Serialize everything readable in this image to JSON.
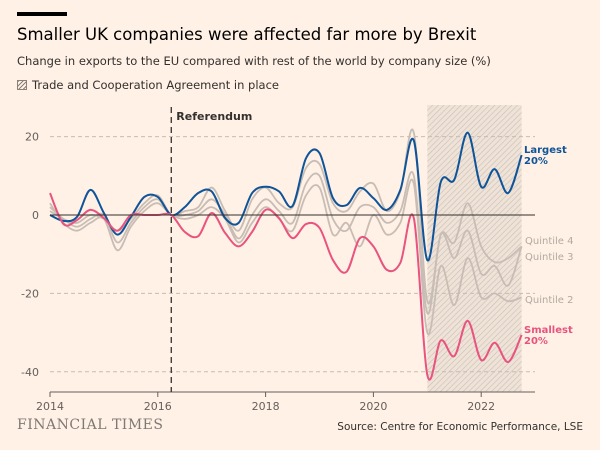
{
  "header": {
    "title": "Smaller UK companies were affected far more by Brexit",
    "subtitle": "Change in exports to the EU compared with rest of the world by company size (%)",
    "legend_label": "Trade and Cooperation Agreement in place"
  },
  "footer": {
    "brand": "FINANCIAL TIMES",
    "source": "Source: Centre for Economic Performance, LSE"
  },
  "colors": {
    "background": "#fff1e5",
    "largest": "#0f5499",
    "smallest": "#e8537f",
    "quintiles": "#c8bdb5",
    "shading": "#b8aea6"
  },
  "chart_data": {
    "type": "line",
    "title": "Smaller UK companies were affected far more by Brexit",
    "xlim": [
      2014,
      2022.9
    ],
    "ylim": [
      -45,
      28
    ],
    "x_ticks": [
      "2014",
      "2016",
      "2018",
      "2020",
      "2022"
    ],
    "y_ticks": [
      "20",
      "0",
      "-20",
      "-40"
    ],
    "grid": true,
    "x_start": 2014,
    "x_step": 0.25,
    "annotations": [
      {
        "label": "Referendum",
        "x": 2016.25
      }
    ],
    "shaded_region": {
      "label": "Trade and Cooperation Agreement in place",
      "from": 2021.0,
      "to": 2022.75
    },
    "series": [
      {
        "name": "Quintile 4",
        "label": "Quintile 4",
        "values": [
          1,
          -1,
          -2,
          0,
          -1,
          -4,
          -1,
          3,
          5,
          0,
          1,
          2,
          7,
          1,
          -4,
          4,
          7,
          3,
          2,
          12,
          13,
          3,
          1,
          6,
          8,
          1,
          6,
          21,
          -22,
          -5,
          -7,
          3,
          -8,
          -12,
          -11,
          -8
        ]
      },
      {
        "name": "Quintile 3",
        "label": "Quintile 3",
        "values": [
          2,
          -1,
          -3,
          -1,
          0,
          -7,
          -2,
          2,
          4,
          0,
          0,
          1,
          4,
          0,
          -6,
          0,
          4,
          1,
          -2,
          8,
          10,
          -1,
          -4,
          2,
          2,
          -2,
          1,
          10,
          -25,
          -5,
          -11,
          -4,
          -15,
          -13,
          -18,
          -8
        ]
      },
      {
        "name": "Quintile 2",
        "label": "Quintile 2",
        "values": [
          3,
          -2,
          -4,
          -2,
          -1,
          -9,
          -3,
          1,
          3,
          0,
          -1,
          0,
          2,
          -1,
          -7,
          -2,
          2,
          -1,
          -4,
          5,
          7,
          -5,
          -2,
          -8,
          0,
          -5,
          -2,
          8,
          -30,
          -13,
          -23,
          -11,
          -21,
          -20,
          -22,
          -21
        ]
      },
      {
        "name": "Largest 20%",
        "label": "Largest 20%",
        "values": [
          0,
          -1.5,
          -0.5,
          6.4,
          0.5,
          -5,
          -0.5,
          4.6,
          4.6,
          0,
          2,
          5.6,
          6,
          -0.8,
          -2,
          5.6,
          7.2,
          6,
          2.3,
          14.5,
          15.8,
          4.3,
          2.5,
          6.9,
          4.3,
          1.3,
          6.4,
          19,
          -11.5,
          8.4,
          9,
          21,
          7.2,
          11.7,
          5.6,
          15.3
        ]
      },
      {
        "name": "Smallest 20%",
        "label": "Smallest 20%",
        "values": [
          5.6,
          -2.3,
          -1.3,
          1.3,
          -0.8,
          -4,
          0,
          0,
          0,
          0,
          -4.3,
          -5.4,
          0.5,
          -4.6,
          -8,
          -4.3,
          1.3,
          -0.8,
          -5.9,
          -2.3,
          -3.3,
          -11.5,
          -14.5,
          -5.9,
          -8,
          -14,
          -12.2,
          -0.8,
          -40.8,
          -32,
          -36,
          -27,
          -37,
          -32.6,
          -37.5,
          -30.6
        ]
      }
    ]
  }
}
